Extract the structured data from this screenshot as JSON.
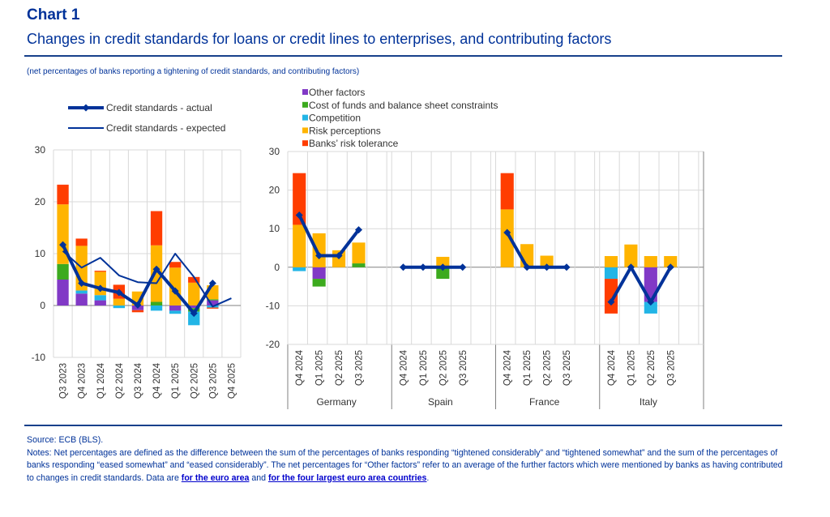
{
  "header": {
    "chart_number": "Chart 1",
    "title": "Changes in credit standards for loans or credit lines to enterprises, and contributing factors",
    "subtitle": "(net percentages of banks reporting a tightening of credit standards, and contributing factors)"
  },
  "colors": {
    "other_factors": "#8139c6",
    "cost_of_funds": "#3caa1e",
    "competition": "#22b5e6",
    "risk_perceptions": "#ffb400",
    "risk_tolerance": "#ff3d00",
    "line": "#003299",
    "title": "#003299"
  },
  "chart_data": [
    {
      "type": "bar",
      "subtype": "stacked-bar-with-lines",
      "title": "",
      "xlabel": "",
      "ylabel": "",
      "ylim": [
        -10,
        30
      ],
      "yticks": [
        -10,
        0,
        10,
        20,
        30
      ],
      "grid": true,
      "legend_position": "top-left",
      "categories": [
        "Q3 2023",
        "Q4 2023",
        "Q1 2024",
        "Q2 2024",
        "Q3 2024",
        "Q4 2024",
        "Q1 2025",
        "Q2 2025",
        "Q3 2025",
        "Q4 2025"
      ],
      "series": [
        {
          "name": "Other factors",
          "key": "other_factors",
          "values": [
            5.0,
            2.3,
            1.0,
            0.0,
            -0.9,
            0.0,
            -1.0,
            -0.5,
            1.0,
            null
          ]
        },
        {
          "name": "Cost of funds and balance sheet constraints",
          "key": "cost_of_funds",
          "values": [
            3.0,
            0.0,
            0.0,
            0.0,
            0.0,
            0.7,
            0.0,
            -0.7,
            0.2,
            null
          ]
        },
        {
          "name": "Competition",
          "key": "competition",
          "values": [
            0.0,
            0.6,
            1.0,
            -0.5,
            0.0,
            -1.0,
            -0.6,
            -2.6,
            -0.4,
            null
          ]
        },
        {
          "name": "Risk perceptions",
          "key": "risk_perceptions",
          "values": [
            11.5,
            8.6,
            4.5,
            1.3,
            2.7,
            10.9,
            7.3,
            4.4,
            2.7,
            null
          ]
        },
        {
          "name": "Banks' risk tolerance",
          "key": "risk_tolerance",
          "values": [
            3.8,
            1.4,
            0.2,
            2.7,
            -0.4,
            6.6,
            1.1,
            1.1,
            -0.2,
            null
          ]
        }
      ],
      "lines": [
        {
          "name": "Credit standards - actual",
          "key": "actual",
          "values": [
            11.7,
            4.3,
            3.3,
            2.5,
            0.1,
            7.0,
            2.8,
            -1.5,
            4.3,
            null
          ]
        },
        {
          "name": "Credit standards - expected",
          "key": "expected",
          "values": [
            10.5,
            7.3,
            9.2,
            5.8,
            4.5,
            4.3,
            10.0,
            5.5,
            -0.2,
            1.4
          ]
        }
      ]
    },
    {
      "type": "bar",
      "subtype": "stacked-bar-with-lines-grouped",
      "title": "",
      "xlabel": "",
      "ylabel": "",
      "ylim": [
        -20,
        30
      ],
      "yticks": [
        -20,
        -10,
        0,
        10,
        20,
        30
      ],
      "grid": true,
      "legend_position": "top-left",
      "groups": [
        {
          "name": "Germany",
          "categories": [
            "Q4 2024",
            "Q1 2025",
            "Q2 2025",
            "Q3 2025"
          ],
          "other_factors": [
            0,
            -3.0,
            0,
            0
          ],
          "cost_of_funds": [
            0,
            -2.0,
            0,
            1.0
          ],
          "competition": [
            -1.0,
            0,
            0,
            0
          ],
          "risk_perceptions": [
            11.0,
            8.8,
            4.4,
            5.4
          ],
          "risk_tolerance": [
            13.4,
            0,
            0,
            0
          ],
          "actual": [
            13.5,
            3.0,
            3.0,
            9.7
          ]
        },
        {
          "name": "Spain",
          "categories": [
            "Q4 2024",
            "Q1 2025",
            "Q2 2025",
            "Q3 2025"
          ],
          "other_factors": [
            0,
            0,
            0,
            0
          ],
          "cost_of_funds": [
            0,
            0,
            -3.0,
            0
          ],
          "competition": [
            0,
            0,
            0,
            0
          ],
          "risk_perceptions": [
            0,
            0,
            2.7,
            0
          ],
          "risk_tolerance": [
            0,
            0,
            0,
            0
          ],
          "actual": [
            0,
            0,
            0,
            0
          ]
        },
        {
          "name": "France",
          "categories": [
            "Q4 2024",
            "Q1 2025",
            "Q2 2025",
            "Q3 2025"
          ],
          "other_factors": [
            0,
            0,
            0,
            0
          ],
          "cost_of_funds": [
            0,
            0,
            0,
            0
          ],
          "competition": [
            0,
            0,
            0,
            0
          ],
          "risk_perceptions": [
            15.0,
            6.0,
            3.0,
            0
          ],
          "risk_tolerance": [
            9.4,
            0,
            0,
            0
          ],
          "actual": [
            9.0,
            0,
            0,
            0
          ]
        },
        {
          "name": "Italy",
          "categories": [
            "Q4 2024",
            "Q1 2025",
            "Q2 2025",
            "Q3 2025"
          ],
          "other_factors": [
            0,
            0,
            -9.0,
            0
          ],
          "cost_of_funds": [
            0,
            0,
            0,
            0
          ],
          "competition": [
            -3.0,
            0,
            -3.0,
            0
          ],
          "risk_perceptions": [
            2.9,
            5.9,
            2.9,
            2.9
          ],
          "risk_tolerance": [
            -9.0,
            0,
            0,
            0
          ],
          "actual": [
            -9.0,
            0,
            -9.0,
            0
          ]
        }
      ]
    }
  ],
  "legend_lines": [
    {
      "label": "Credit standards - actual"
    },
    {
      "label": "Credit standards - expected"
    }
  ],
  "legend_bars": [
    {
      "label": "Other factors",
      "key": "other_factors"
    },
    {
      "label": "Cost of funds and balance sheet constraints",
      "key": "cost_of_funds"
    },
    {
      "label": "Competition",
      "key": "competition"
    },
    {
      "label": "Risk perceptions",
      "key": "risk_perceptions"
    },
    {
      "label": "Banks’ risk tolerance",
      "key": "risk_tolerance"
    }
  ],
  "footer": {
    "source": "Source: ECB (BLS).",
    "notes_prefix": "Notes: Net percentages are defined as the difference between the sum of the percentages of banks responding “tightened considerably” and “tightened somewhat” and the sum of the percentages of banks responding “eased somewhat” and “eased considerably”. The net percentages for “Other factors” refer to an average of the further factors which were mentioned by banks as having contributed to changes in credit standards. Data are ",
    "link1": "for the euro area",
    "and": " and ",
    "link2": "for the four largest euro area countries",
    "period": "."
  }
}
